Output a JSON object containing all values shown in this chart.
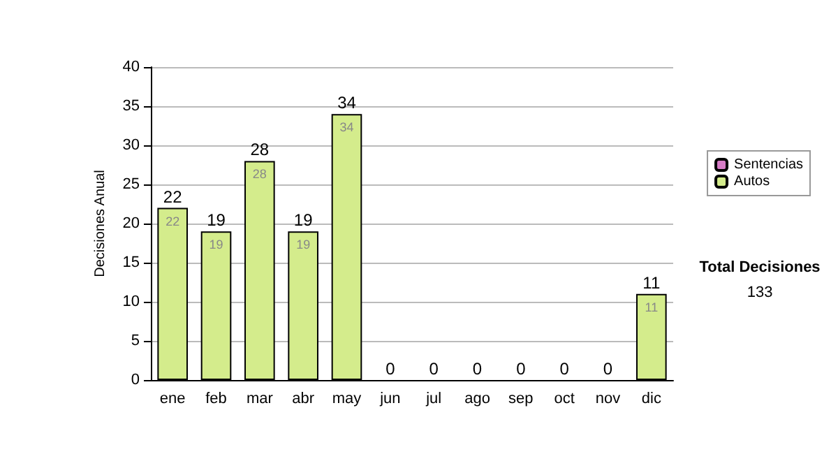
{
  "chart_data": {
    "type": "bar",
    "stacked": true,
    "ylabel": "Decisiones Anual",
    "categories": [
      "ene",
      "feb",
      "mar",
      "abr",
      "may",
      "jun",
      "jul",
      "ago",
      "sep",
      "oct",
      "nov",
      "dic"
    ],
    "series": [
      {
        "name": "Sentencias",
        "color": "#d67cc6",
        "values": [
          0,
          0,
          0,
          0,
          0,
          0,
          0,
          0,
          0,
          0,
          0,
          0
        ]
      },
      {
        "name": "Autos",
        "color": "#d4ec8c",
        "values": [
          22,
          19,
          28,
          19,
          34,
          0,
          0,
          0,
          0,
          0,
          0,
          11
        ],
        "value_labels": [
          "22",
          "19",
          "28",
          "19",
          "34",
          null,
          null,
          null,
          null,
          null,
          null,
          "11"
        ]
      }
    ],
    "totals": [
      "22",
      "19",
      "28",
      "19",
      "34",
      "0",
      "0",
      "0",
      "0",
      "0",
      "0",
      "11"
    ],
    "ylim": [
      0,
      40
    ],
    "yticks": [
      0,
      5,
      10,
      15,
      20,
      25,
      30,
      35,
      40
    ],
    "grid": "y",
    "legend": "right",
    "annotations": [
      "Total Decisiones",
      "133"
    ]
  }
}
